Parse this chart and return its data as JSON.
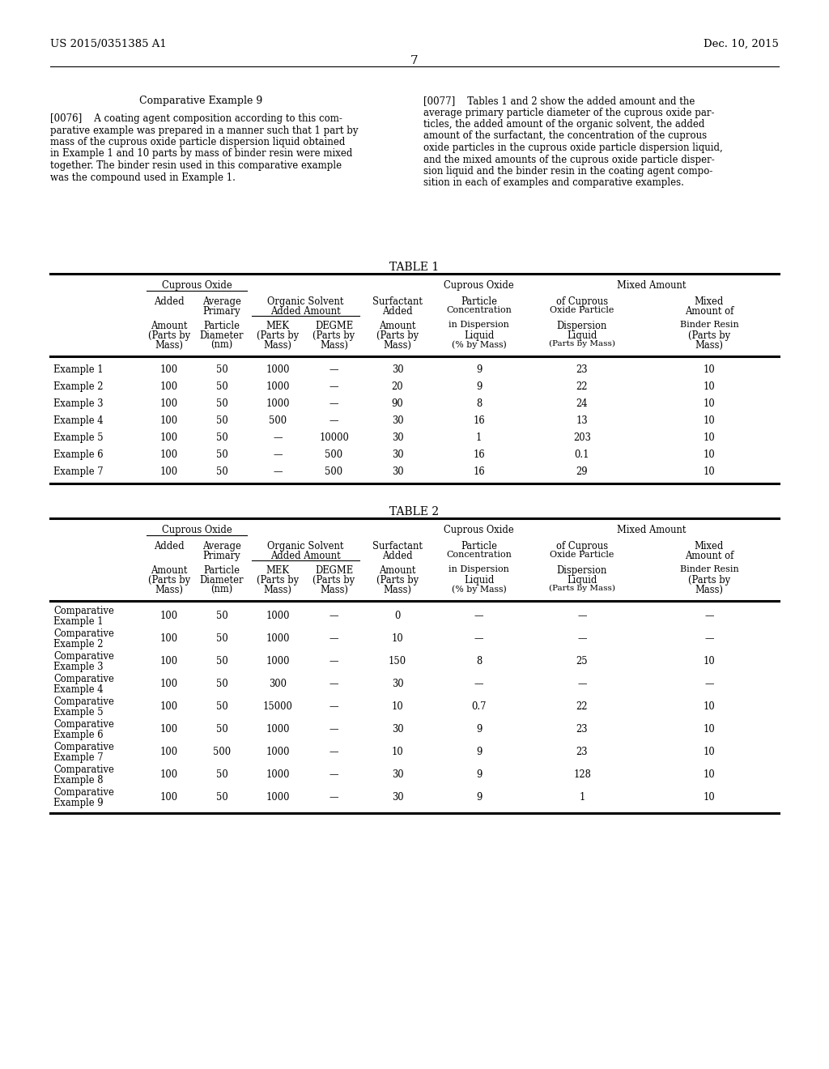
{
  "header_left": "US 2015/0351385 A1",
  "header_right": "Dec. 10, 2015",
  "page_number": "7",
  "left_col_title": "Comparative Example 9",
  "left_col_para_lines": [
    "[0076]    A coating agent composition according to this com-",
    "parative example was prepared in a manner such that 1 part by",
    "mass of the cuprous oxide particle dispersion liquid obtained",
    "in Example 1 and 10 parts by mass of binder resin were mixed",
    "together. The binder resin used in this comparative example",
    "was the compound used in Example 1."
  ],
  "right_col_para_lines": [
    "[0077]    Tables 1 and 2 show the added amount and the",
    "average primary particle diameter of the cuprous oxide par-",
    "ticles, the added amount of the organic solvent, the added",
    "amount of the surfactant, the concentration of the cuprous",
    "oxide particles in the cuprous oxide particle dispersion liquid,",
    "and the mixed amounts of the cuprous oxide particle disper-",
    "sion liquid and the binder resin in the coating agent compo-",
    "sition in each of examples and comparative examples."
  ],
  "table1_title": "TABLE 1",
  "table2_title": "TABLE 2",
  "table1_data": [
    [
      "Example 1",
      "100",
      "50",
      "1000",
      "—",
      "30",
      "9",
      "23",
      "10"
    ],
    [
      "Example 2",
      "100",
      "50",
      "1000",
      "—",
      "20",
      "9",
      "22",
      "10"
    ],
    [
      "Example 3",
      "100",
      "50",
      "1000",
      "—",
      "90",
      "8",
      "24",
      "10"
    ],
    [
      "Example 4",
      "100",
      "50",
      "500",
      "—",
      "30",
      "16",
      "13",
      "10"
    ],
    [
      "Example 5",
      "100",
      "50",
      "—",
      "10000",
      "30",
      "1",
      "203",
      "10"
    ],
    [
      "Example 6",
      "100",
      "50",
      "—",
      "500",
      "30",
      "16",
      "0.1",
      "10"
    ],
    [
      "Example 7",
      "100",
      "50",
      "—",
      "500",
      "30",
      "16",
      "29",
      "10"
    ]
  ],
  "table2_data": [
    [
      "Comparative\nExample 1",
      "100",
      "50",
      "1000",
      "—",
      "0",
      "—",
      "—",
      "—"
    ],
    [
      "Comparative\nExample 2",
      "100",
      "50",
      "1000",
      "—",
      "10",
      "—",
      "—",
      "—"
    ],
    [
      "Comparative\nExample 3",
      "100",
      "50",
      "1000",
      "—",
      "150",
      "8",
      "25",
      "10"
    ],
    [
      "Comparative\nExample 4",
      "100",
      "50",
      "300",
      "—",
      "30",
      "—",
      "—",
      "—"
    ],
    [
      "Comparative\nExample 5",
      "100",
      "50",
      "15000",
      "—",
      "10",
      "0.7",
      "22",
      "10"
    ],
    [
      "Comparative\nExample 6",
      "100",
      "50",
      "1000",
      "—",
      "30",
      "9",
      "23",
      "10"
    ],
    [
      "Comparative\nExample 7",
      "100",
      "500",
      "1000",
      "—",
      "10",
      "9",
      "23",
      "10"
    ],
    [
      "Comparative\nExample 8",
      "100",
      "50",
      "1000",
      "—",
      "30",
      "9",
      "128",
      "10"
    ],
    [
      "Comparative\nExample 9",
      "100",
      "50",
      "1000",
      "—",
      "30",
      "9",
      "1",
      "10"
    ]
  ]
}
